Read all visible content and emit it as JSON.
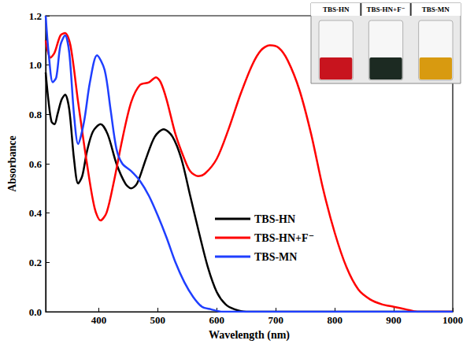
{
  "chart_data": {
    "type": "line",
    "x_label": "Wavelength (nm)",
    "y_label": "Absorbance",
    "xlim": [
      310,
      1000
    ],
    "xticks": [
      400,
      500,
      600,
      700,
      800,
      900,
      1000
    ],
    "ylim": [
      0,
      1.2
    ],
    "yticks": [
      {
        "value": 0,
        "label": "0.0"
      },
      0.2,
      0.4,
      0.6,
      0.8,
      {
        "value": 1,
        "label": "1.0"
      },
      1.2
    ],
    "legend": "center",
    "grid": false,
    "annotations": [
      "TBS-HN",
      "TBS-HN+F⁻",
      "TBS-MN"
    ],
    "series": [
      {
        "name": "TBS-HN",
        "color": "#000000",
        "line_style": "solid",
        "x": [
          310,
          315,
          320,
          325,
          330,
          337,
          343,
          350,
          358,
          365,
          372,
          380,
          390,
          403,
          415,
          430,
          445,
          455,
          465,
          480,
          495,
          510,
          525,
          540,
          555,
          570,
          585,
          600,
          615,
          630,
          650,
          700,
          800,
          900,
          1000
        ],
        "values": [
          0.97,
          0.85,
          0.77,
          0.76,
          0.8,
          0.86,
          0.88,
          0.82,
          0.62,
          0.52,
          0.55,
          0.65,
          0.73,
          0.76,
          0.72,
          0.6,
          0.52,
          0.5,
          0.52,
          0.62,
          0.71,
          0.74,
          0.71,
          0.62,
          0.47,
          0.32,
          0.18,
          0.08,
          0.03,
          0.01,
          0,
          0,
          0,
          0,
          0
        ]
      },
      {
        "name": "TBS-HN+F⁻",
        "color": "#ff0000",
        "line_style": "solid",
        "x": [
          310,
          318,
          325,
          335,
          343,
          352,
          365,
          380,
          393,
          403,
          413,
          425,
          440,
          455,
          470,
          485,
          497,
          505,
          515,
          530,
          545,
          555,
          568,
          580,
          600,
          620,
          640,
          660,
          675,
          690,
          705,
          720,
          740,
          760,
          780,
          800,
          820,
          840,
          860,
          880,
          900,
          920,
          940,
          1000
        ],
        "values": [
          1.1,
          1.03,
          1.05,
          1.12,
          1.13,
          1.08,
          0.85,
          0.6,
          0.42,
          0.37,
          0.4,
          0.52,
          0.7,
          0.85,
          0.92,
          0.93,
          0.95,
          0.93,
          0.86,
          0.72,
          0.62,
          0.57,
          0.55,
          0.56,
          0.62,
          0.74,
          0.88,
          1.0,
          1.06,
          1.08,
          1.07,
          1.02,
          0.9,
          0.72,
          0.5,
          0.32,
          0.18,
          0.09,
          0.05,
          0.03,
          0.02,
          0.01,
          0,
          0
        ]
      },
      {
        "name": "TBS-MN",
        "color": "#1f3fff",
        "line_style": "solid",
        "x": [
          310,
          315,
          322,
          328,
          335,
          343,
          350,
          358,
          365,
          375,
          385,
          397,
          410,
          420,
          430,
          440,
          455,
          470,
          485,
          500,
          515,
          530,
          545,
          560,
          575,
          590,
          610,
          700,
          1000
        ],
        "values": [
          1.2,
          1.05,
          0.93,
          0.95,
          1.08,
          1.12,
          1.05,
          0.8,
          0.68,
          0.77,
          0.93,
          1.04,
          0.98,
          0.82,
          0.66,
          0.6,
          0.57,
          0.53,
          0.47,
          0.39,
          0.3,
          0.2,
          0.12,
          0.06,
          0.02,
          0.01,
          0,
          0,
          0
        ]
      }
    ]
  }
}
